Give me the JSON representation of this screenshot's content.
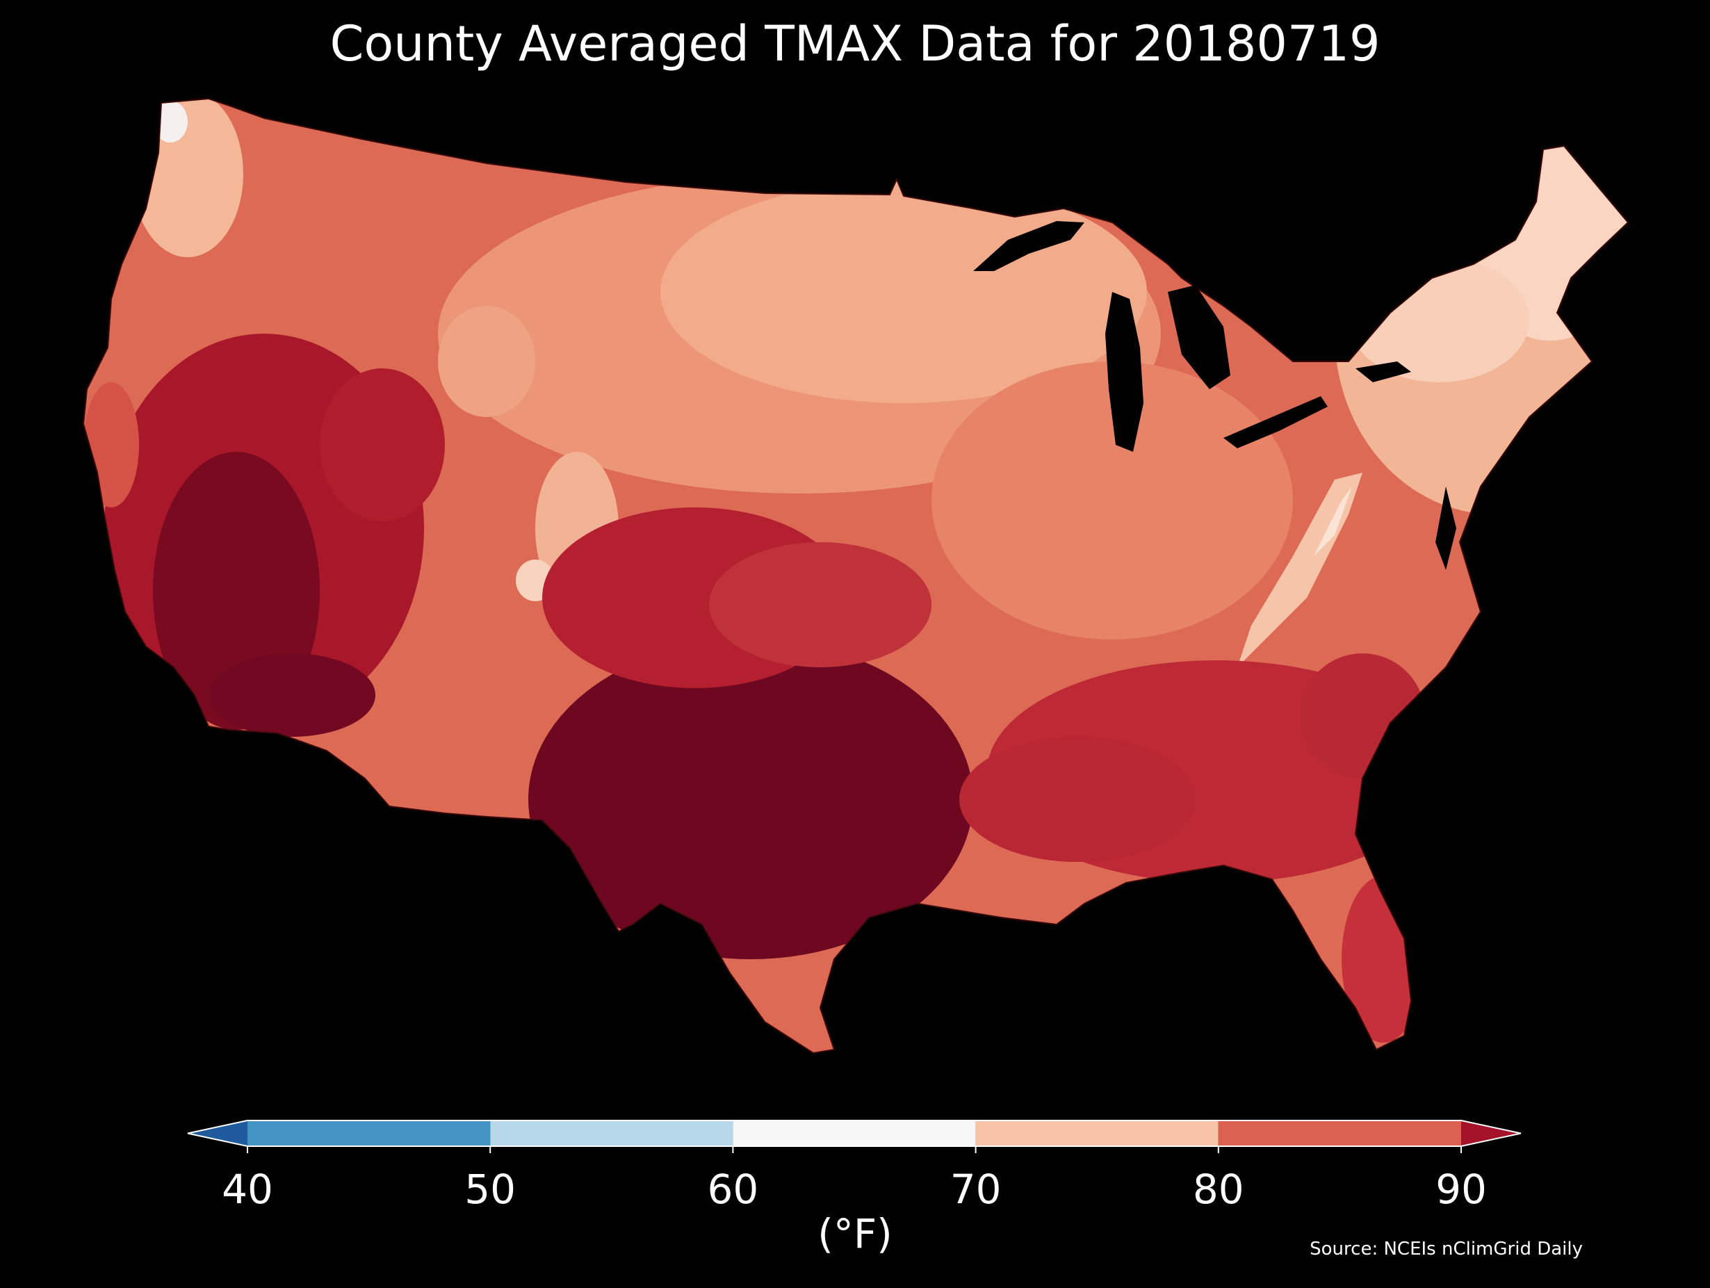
{
  "title": "County Averaged TMAX Data for 20180719",
  "colorbar": {
    "unit_label": "(°F)",
    "ticks": [
      "40",
      "50",
      "60",
      "70",
      "80",
      "90"
    ],
    "tick_values": [
      40,
      50,
      60,
      70,
      80,
      90
    ],
    "bins": [
      {
        "from": 40,
        "to": 50,
        "color": "#4393c3"
      },
      {
        "from": 50,
        "to": 60,
        "color": "#b7d8ea"
      },
      {
        "from": 60,
        "to": 70,
        "color": "#f6f6f6"
      },
      {
        "from": 70,
        "to": 80,
        "color": "#f7c3a6"
      },
      {
        "from": 80,
        "to": 90,
        "color": "#db6250"
      }
    ],
    "under_color": "#1f5a9c",
    "over_color": "#a5132a",
    "extend": "both"
  },
  "source": "Source: NCEIs nClimGrid Daily",
  "map": {
    "region": "Contiguous United States",
    "level": "county",
    "variable": "TMAX",
    "background_color": "#000000",
    "border_color": "#3a0a0a"
  }
}
